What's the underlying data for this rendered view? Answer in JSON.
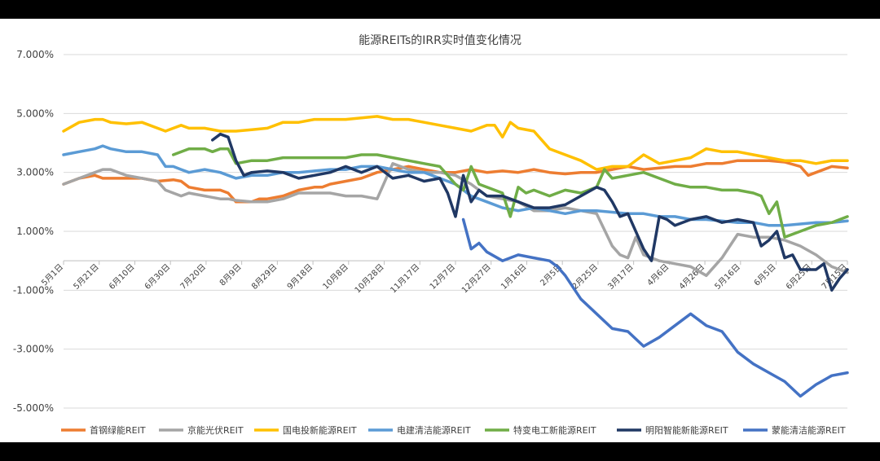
{
  "chart_data": {
    "type": "line",
    "title": "能源REITs的IRR实时值变化情况",
    "ylim": [
      -5.0,
      7.0
    ],
    "yticks": [
      "7.000%",
      "5.000%",
      "3.000%",
      "1.000%",
      "-1.000%",
      "-3.000%",
      "-5.000%"
    ],
    "ytick_values": [
      7,
      5,
      3,
      1,
      -1,
      -3,
      -5
    ],
    "xlim": [
      0,
      100
    ],
    "xticks": [
      "5月1日",
      "5月21日",
      "6月10日",
      "6月30日",
      "7月20日",
      "8月9日",
      "8月29日",
      "9月18日",
      "10月8日",
      "10月28日",
      "11月17日",
      "12月7日",
      "12月27日",
      "1月16日",
      "2月5日",
      "2月25日",
      "3月17日",
      "4月6日",
      "4月26日",
      "5月16日",
      "6月5日",
      "6月25日",
      "7月15日"
    ],
    "grid": true,
    "legend_position": "bottom",
    "series": [
      {
        "name": "首钢绿能REIT",
        "color": "#ED7D31",
        "x": [
          0,
          2,
          4,
          5,
          6,
          8,
          10,
          12,
          14,
          15,
          16,
          18,
          20,
          21,
          22,
          24,
          25,
          26,
          28,
          30,
          32,
          33,
          34,
          36,
          38,
          40,
          42,
          44,
          46,
          48,
          50,
          52,
          54,
          56,
          58,
          60,
          62,
          64,
          66,
          68,
          70,
          72,
          74,
          76,
          78,
          80,
          82,
          84,
          86,
          88,
          90,
          92,
          94,
          95,
          96,
          98,
          100
        ],
        "y": [
          2.6,
          2.8,
          2.9,
          2.8,
          2.8,
          2.8,
          2.8,
          2.7,
          2.75,
          2.7,
          2.5,
          2.4,
          2.4,
          2.3,
          2.0,
          2.0,
          2.1,
          2.1,
          2.2,
          2.4,
          2.5,
          2.5,
          2.6,
          2.7,
          2.8,
          3.0,
          3.1,
          3.2,
          3.1,
          3.0,
          3.0,
          3.1,
          3.0,
          3.05,
          3.0,
          3.1,
          3.0,
          2.95,
          3.0,
          3.0,
          3.1,
          3.2,
          3.1,
          3.15,
          3.2,
          3.2,
          3.3,
          3.3,
          3.4,
          3.4,
          3.4,
          3.35,
          3.2,
          2.9,
          3.0,
          3.2,
          3.15
        ]
      },
      {
        "name": "京能光伏REIT",
        "color": "#A5A5A5",
        "x": [
          0,
          2,
          4,
          5,
          6,
          8,
          10,
          12,
          13,
          14,
          15,
          16,
          18,
          20,
          21,
          22,
          24,
          26,
          28,
          30,
          32,
          34,
          36,
          38,
          40,
          42,
          43,
          44,
          46,
          48,
          50,
          52,
          54,
          56,
          58,
          60,
          62,
          64,
          66,
          68,
          70,
          71,
          72,
          73,
          74,
          76,
          78,
          80,
          82,
          84,
          86,
          88,
          90,
          92,
          94,
          96,
          98,
          100
        ],
        "y": [
          2.6,
          2.8,
          3.0,
          3.1,
          3.1,
          2.9,
          2.8,
          2.7,
          2.4,
          2.3,
          2.2,
          2.3,
          2.2,
          2.1,
          2.1,
          2.05,
          2.0,
          2.0,
          2.1,
          2.3,
          2.3,
          2.3,
          2.2,
          2.2,
          2.1,
          3.3,
          3.2,
          3.1,
          3.0,
          3.0,
          2.9,
          2.6,
          2.2,
          2.1,
          2.0,
          1.7,
          1.7,
          1.8,
          1.7,
          1.6,
          0.5,
          0.2,
          0.1,
          0.8,
          0.2,
          0.0,
          -0.1,
          -0.2,
          -0.5,
          0.1,
          0.9,
          0.8,
          0.8,
          0.7,
          0.5,
          0.2,
          -0.2,
          -0.4
        ]
      },
      {
        "name": "国电投新能源REIT",
        "color": "#FFC000",
        "x": [
          0,
          2,
          4,
          5,
          6,
          8,
          10,
          12,
          13,
          14,
          15,
          16,
          18,
          20,
          22,
          24,
          26,
          28,
          30,
          32,
          34,
          36,
          38,
          40,
          42,
          44,
          46,
          48,
          50,
          52,
          54,
          55,
          56,
          57,
          58,
          60,
          62,
          64,
          66,
          68,
          70,
          72,
          74,
          76,
          78,
          80,
          82,
          84,
          86,
          88,
          90,
          92,
          94,
          96,
          98,
          100
        ],
        "y": [
          4.4,
          4.7,
          4.8,
          4.8,
          4.7,
          4.65,
          4.7,
          4.5,
          4.4,
          4.5,
          4.6,
          4.5,
          4.5,
          4.4,
          4.4,
          4.45,
          4.5,
          4.7,
          4.7,
          4.8,
          4.8,
          4.8,
          4.85,
          4.9,
          4.8,
          4.8,
          4.7,
          4.6,
          4.5,
          4.4,
          4.6,
          4.6,
          4.2,
          4.7,
          4.5,
          4.4,
          3.8,
          3.6,
          3.4,
          3.1,
          3.2,
          3.2,
          3.6,
          3.3,
          3.4,
          3.5,
          3.8,
          3.7,
          3.7,
          3.6,
          3.5,
          3.4,
          3.4,
          3.3,
          3.4,
          3.4
        ]
      },
      {
        "name": "电建清洁能源REIT",
        "color": "#5B9BD5",
        "x": [
          0,
          2,
          4,
          5,
          6,
          8,
          10,
          12,
          13,
          14,
          15,
          16,
          18,
          20,
          21,
          22,
          24,
          26,
          28,
          30,
          32,
          34,
          36,
          38,
          40,
          42,
          44,
          46,
          48,
          50,
          52,
          54,
          56,
          58,
          60,
          62,
          64,
          66,
          68,
          70,
          72,
          74,
          76,
          78,
          80,
          82,
          84,
          86,
          88,
          90,
          92,
          94,
          96,
          98,
          100
        ],
        "y": [
          3.6,
          3.7,
          3.8,
          3.9,
          3.8,
          3.7,
          3.7,
          3.6,
          3.2,
          3.2,
          3.1,
          3.0,
          3.1,
          3.0,
          2.9,
          2.8,
          2.9,
          2.9,
          3.0,
          3.0,
          3.05,
          3.1,
          3.1,
          3.2,
          3.2,
          3.1,
          3.0,
          3.0,
          2.8,
          2.6,
          2.2,
          2.0,
          1.8,
          1.7,
          1.8,
          1.7,
          1.6,
          1.7,
          1.7,
          1.65,
          1.6,
          1.6,
          1.5,
          1.5,
          1.4,
          1.4,
          1.35,
          1.3,
          1.3,
          1.2,
          1.2,
          1.25,
          1.3,
          1.3,
          1.35
        ]
      },
      {
        "name": "特变电工新能源REIT",
        "color": "#70AD47",
        "x": [
          14,
          16,
          18,
          19,
          20,
          21,
          22,
          24,
          26,
          28,
          30,
          32,
          34,
          36,
          38,
          40,
          42,
          44,
          46,
          48,
          50,
          51,
          52,
          53,
          54,
          56,
          57,
          58,
          59,
          60,
          62,
          64,
          66,
          68,
          69,
          70,
          72,
          74,
          76,
          78,
          80,
          82,
          84,
          86,
          88,
          89,
          90,
          91,
          92,
          94,
          96,
          98,
          100
        ],
        "y": [
          3.6,
          3.8,
          3.8,
          3.7,
          3.8,
          3.8,
          3.3,
          3.4,
          3.4,
          3.5,
          3.5,
          3.5,
          3.5,
          3.5,
          3.6,
          3.6,
          3.5,
          3.4,
          3.3,
          3.2,
          2.6,
          2.4,
          3.2,
          2.6,
          2.5,
          2.3,
          1.5,
          2.5,
          2.3,
          2.4,
          2.2,
          2.4,
          2.3,
          2.5,
          3.1,
          2.8,
          2.9,
          3.0,
          2.8,
          2.6,
          2.5,
          2.5,
          2.4,
          2.4,
          2.3,
          2.2,
          1.6,
          2.0,
          0.8,
          1.0,
          1.2,
          1.3,
          1.5
        ]
      },
      {
        "name": "明阳智能新能源REIT",
        "color": "#203864",
        "x": [
          19,
          20,
          21,
          22,
          23,
          24,
          26,
          28,
          30,
          32,
          34,
          36,
          38,
          40,
          42,
          44,
          46,
          48,
          49,
          50,
          51,
          52,
          53,
          54,
          56,
          58,
          60,
          62,
          64,
          66,
          68,
          69,
          70,
          71,
          72,
          74,
          75,
          76,
          77,
          78,
          80,
          82,
          84,
          86,
          88,
          89,
          90,
          91,
          92,
          93,
          94,
          96,
          97,
          98,
          99,
          100
        ],
        "y": [
          4.1,
          4.3,
          4.2,
          3.4,
          2.9,
          3.0,
          3.05,
          3.0,
          2.8,
          2.9,
          3.0,
          3.2,
          3.0,
          3.2,
          2.8,
          2.9,
          2.7,
          2.8,
          2.3,
          1.5,
          2.9,
          2.0,
          2.4,
          2.2,
          2.2,
          2.0,
          1.8,
          1.8,
          1.9,
          2.2,
          2.5,
          2.4,
          2.0,
          1.5,
          1.6,
          0.4,
          0.0,
          1.5,
          1.4,
          1.2,
          1.4,
          1.5,
          1.3,
          1.4,
          1.3,
          0.5,
          0.7,
          1.0,
          0.1,
          0.2,
          -0.3,
          -0.3,
          -0.1,
          -1.0,
          -0.6,
          -0.3
        ]
      },
      {
        "name": "蒙能清洁能源REIT",
        "color": "#4472C4",
        "x": [
          51,
          52,
          53,
          54,
          56,
          58,
          60,
          62,
          63,
          64,
          66,
          68,
          70,
          72,
          74,
          76,
          78,
          80,
          82,
          84,
          86,
          88,
          90,
          92,
          94,
          96,
          98,
          100
        ],
        "y": [
          1.4,
          0.4,
          0.6,
          0.3,
          0.0,
          0.2,
          0.1,
          0.0,
          -0.2,
          -0.5,
          -1.3,
          -1.8,
          -2.3,
          -2.4,
          -2.9,
          -2.6,
          -2.2,
          -1.8,
          -2.2,
          -2.4,
          -3.1,
          -3.5,
          -3.8,
          -4.1,
          -4.6,
          -4.2,
          -3.9,
          -3.8
        ]
      }
    ]
  }
}
